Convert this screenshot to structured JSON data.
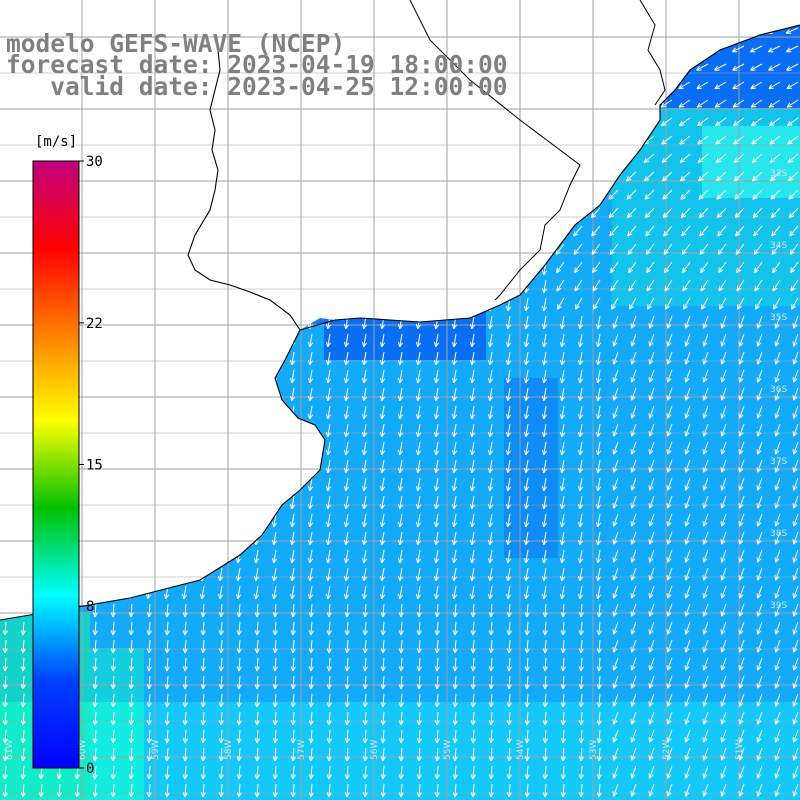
{
  "title": {
    "model": "modelo GEFS-WAVE (NCEP)",
    "forecast": "forecast date: 2023-04-19 18:00:00",
    "valid": "   valid date: 2023-04-25 12:00:00"
  },
  "colorbar": {
    "unit": "[m/s]",
    "ticks": [
      "30",
      "22",
      "15",
      "8",
      "0"
    ],
    "tick_values": [
      30,
      22,
      15,
      8,
      0
    ],
    "vmin": 0,
    "vmax": 30,
    "colors": [
      "#c0007f",
      "#ff0000",
      "#ff8000",
      "#ffff00",
      "#00c000",
      "#00ffff",
      "#0040ff",
      "#0000ff"
    ]
  },
  "map": {
    "lon_labels": [
      "61W",
      "60W",
      "59W",
      "58W",
      "57W",
      "56W",
      "55W",
      "54W",
      "53W",
      "52W",
      "51W"
    ],
    "lat_labels": [
      "33S",
      "34S",
      "35S",
      "36S",
      "37S",
      "38S",
      "39S"
    ],
    "land_color": "#ffffff",
    "grid_color": "#a0a0a0",
    "arrow_color": "#ffffff",
    "wind_direction": "from north-east",
    "field": "10 m wind speed"
  }
}
